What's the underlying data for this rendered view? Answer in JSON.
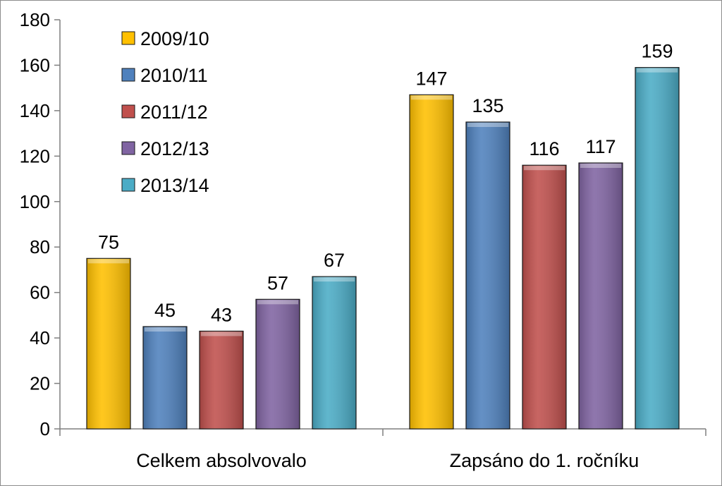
{
  "chart_data": {
    "type": "bar",
    "categories": [
      "Celkem absolvovalo",
      "Zapsáno do 1. ročníku"
    ],
    "series": [
      {
        "name": "2009/10",
        "values": [
          75,
          147
        ]
      },
      {
        "name": "2010/11",
        "values": [
          45,
          135
        ]
      },
      {
        "name": "2011/12",
        "values": [
          43,
          116
        ]
      },
      {
        "name": "2012/13",
        "values": [
          57,
          117
        ]
      },
      {
        "name": "2013/14",
        "values": [
          67,
          159
        ]
      }
    ],
    "colors": [
      "#FFC000",
      "#4F81BD",
      "#C0504D",
      "#8064A2",
      "#4BACC6"
    ],
    "ylim": [
      0,
      180
    ],
    "yticks": [
      0,
      20,
      40,
      60,
      80,
      100,
      120,
      140,
      160,
      180
    ],
    "legend": "top-left",
    "grid": false,
    "data_labels": true,
    "title": "",
    "xlabel": "",
    "ylabel": ""
  }
}
